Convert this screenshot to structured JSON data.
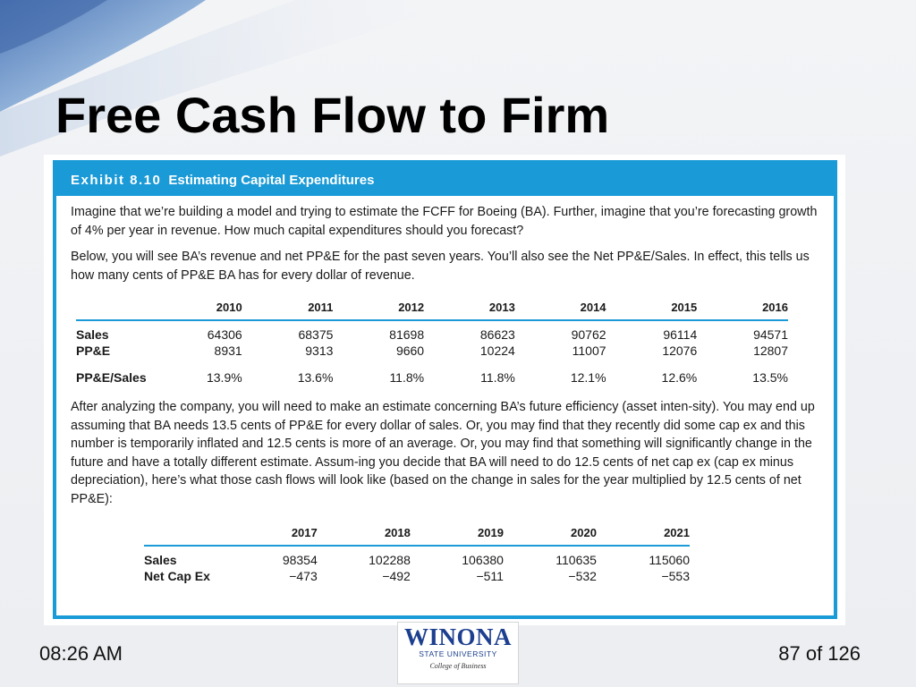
{
  "slide": {
    "title": "Free Cash Flow to Firm",
    "time": "08:26 AM",
    "page": "87 of 126"
  },
  "exhibit": {
    "number": "Exhibit 8.10",
    "title": "Estimating Capital Expenditures",
    "para1": "Imagine that we’re building a model and trying to estimate the FCFF for Boeing (BA). Further, imagine that you’re forecasting growth of 4% per year in revenue. How much capital expenditures should you forecast?",
    "para2": "Below, you will see BA’s revenue and net PP&E for the past seven years. You’ll also see the Net PP&E/Sales. In effect, this tells us how many cents of PP&E BA has for every dollar of revenue.",
    "table1": {
      "years": [
        "2010",
        "2011",
        "2012",
        "2013",
        "2014",
        "2015",
        "2016"
      ],
      "rows": [
        {
          "label": "Sales",
          "values": [
            "64306",
            "68375",
            "81698",
            "86623",
            "90762",
            "96114",
            "94571"
          ]
        },
        {
          "label": "PP&E",
          "values": [
            "8931",
            "9313",
            "9660",
            "10224",
            "11007",
            "12076",
            "12807"
          ]
        },
        {
          "label": "PP&E/Sales",
          "values": [
            "13.9%",
            "13.6%",
            "11.8%",
            "11.8%",
            "12.1%",
            "12.6%",
            "13.5%"
          ]
        }
      ]
    },
    "para3": "After analyzing the company, you will need to make an estimate concerning BA’s future efficiency (asset inten-sity). You may end up assuming that BA needs 13.5 cents of PP&E for every dollar of sales. Or, you may find that they recently did some cap ex and this number is temporarily inflated and 12.5 cents is more of an average. Or, you may find that something will significantly change in the future and have a totally different estimate. Assum-ing you decide that BA will need to do 12.5 cents of net cap ex (cap ex minus depreciation), here’s what those cash flows will look like (based on the change in sales for the year multiplied by 12.5 cents of net PP&E):",
    "table2": {
      "years": [
        "2017",
        "2018",
        "2019",
        "2020",
        "2021"
      ],
      "rows": [
        {
          "label": "Sales",
          "values": [
            "98354",
            "102288",
            "106380",
            "110635",
            "115060"
          ]
        },
        {
          "label": "Net Cap Ex",
          "values": [
            "−473",
            "−492",
            "−511",
            "−532",
            "−553"
          ]
        }
      ]
    }
  },
  "logo": {
    "wordmark": "WINONA",
    "subtitle": "STATE UNIVERSITY",
    "college": "College of Business"
  },
  "colors": {
    "accent": "#1a9ad6",
    "logo_blue": "#1d3f8f"
  }
}
